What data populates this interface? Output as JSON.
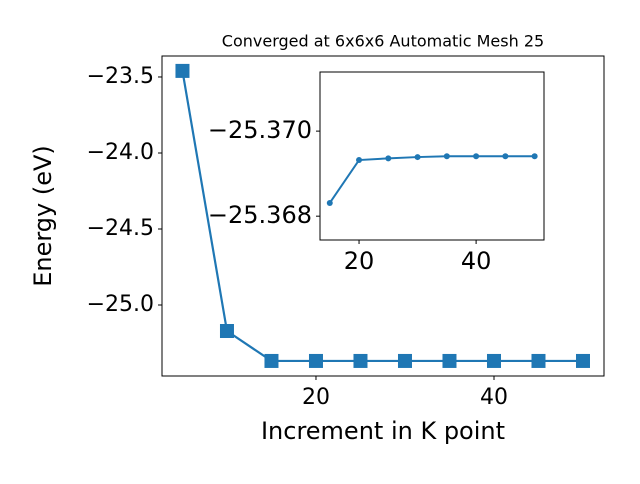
{
  "chart_data": [
    {
      "type": "line",
      "title": "Converged at 6x6x6 Automatic Mesh 25",
      "xlabel": "Increment in K point",
      "ylabel": "Energy (eV)",
      "x": [
        5,
        10,
        15,
        20,
        25,
        30,
        35,
        40,
        45,
        50
      ],
      "series": [
        {
          "color": "#1f77b4",
          "marker": "square",
          "values": [
            -23.46,
            -25.171,
            -25.368,
            -25.368,
            -25.368,
            -25.368,
            -25.368,
            -25.368,
            -25.368,
            -25.368
          ]
        }
      ],
      "xlim": [
        2.7,
        52.36
      ],
      "ylim": [
        -25.467,
        -23.362
      ],
      "xticks": [
        20,
        40
      ],
      "yticks": [
        {
          "value": -23.5,
          "label": "−23.5"
        },
        {
          "value": -24.0,
          "label": "−24.0"
        },
        {
          "value": -24.5,
          "label": "−24.5"
        },
        {
          "value": -25.0,
          "label": "−25.0"
        }
      ]
    },
    {
      "type": "line",
      "x": [
        15,
        20,
        25,
        30,
        35,
        40,
        45,
        50
      ],
      "series": [
        {
          "color": "#1f77b4",
          "marker": "circle",
          "values": [
            -25.36831,
            -25.36932,
            -25.36936,
            -25.36939,
            -25.36941,
            -25.36941,
            -25.36941,
            -25.36941
          ]
        }
      ],
      "xlim": [
        13.33,
        51.6
      ],
      "ylim": [
        -25.36744,
        -25.37139
      ],
      "xticks": [
        20,
        40
      ],
      "yticks": [
        {
          "value": -25.37,
          "label": "−25.370"
        },
        {
          "value": -25.368,
          "label": "−25.368"
        }
      ]
    }
  ]
}
